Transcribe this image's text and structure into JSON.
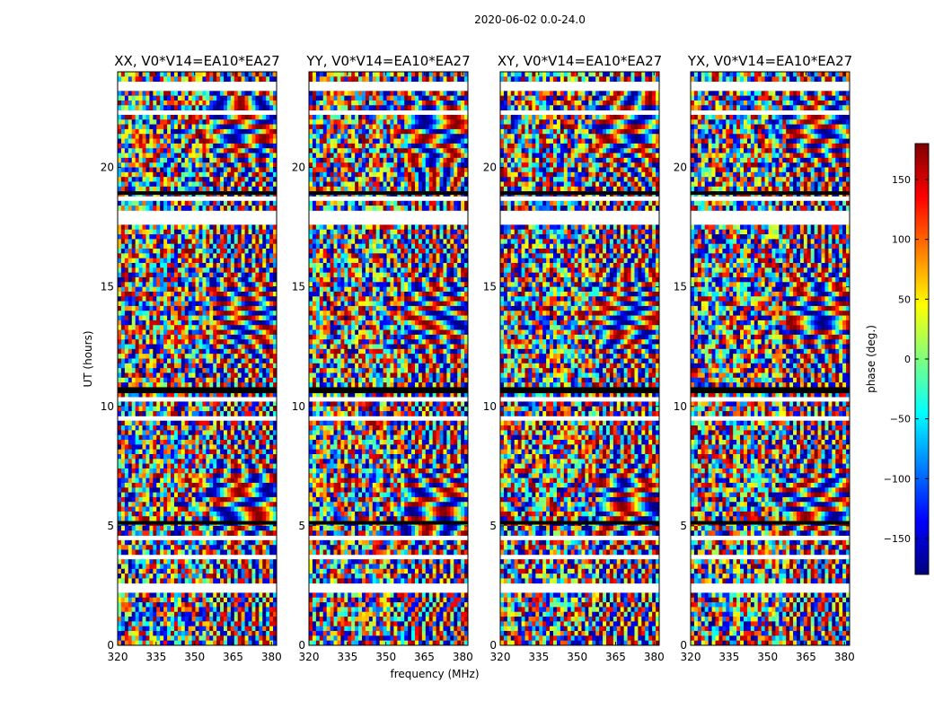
{
  "figure_title": "2020-06-02 0.0-24.0",
  "colorscale": [
    "#00007f",
    "#0000ff",
    "#007fff",
    "#00ffff",
    "#7fff7f",
    "#ffff00",
    "#ff7f00",
    "#ff0000",
    "#7f0000"
  ],
  "chart_data": [
    {
      "type": "heatmap",
      "title": "XX, V0*V14=EA10*EA27",
      "xlabel": "",
      "ylabel": "UT (hours)",
      "xlim": [
        320,
        382
      ],
      "ylim": [
        0,
        24
      ],
      "xticks": [
        320,
        335,
        350,
        365,
        380
      ],
      "yticks": [
        0,
        5,
        10,
        15,
        20
      ]
    },
    {
      "type": "heatmap",
      "title": "YY, V0*V14=EA10*EA27",
      "xlabel": "frequency (MHz)",
      "ylabel": "",
      "xlim": [
        320,
        382
      ],
      "ylim": [
        0,
        24
      ],
      "xticks": [
        320,
        335,
        350,
        365,
        380
      ],
      "yticks": [
        0,
        5,
        10,
        15,
        20
      ]
    },
    {
      "type": "heatmap",
      "title": "XY, V0*V14=EA10*EA27",
      "xlabel": "",
      "ylabel": "",
      "xlim": [
        320,
        382
      ],
      "ylim": [
        0,
        24
      ],
      "xticks": [
        320,
        335,
        350,
        365,
        380
      ],
      "yticks": [
        0,
        5,
        10,
        15,
        20
      ]
    },
    {
      "type": "heatmap",
      "title": "YX, V0*V14=EA10*EA27",
      "xlabel": "",
      "ylabel": "",
      "xlim": [
        320,
        382
      ],
      "ylim": [
        0,
        24
      ],
      "xticks": [
        320,
        335,
        350,
        365,
        380
      ],
      "yticks": [
        0,
        5,
        10,
        15,
        20
      ]
    }
  ],
  "colorbar": {
    "label": "phase (deg.)",
    "range": [
      -180,
      180
    ],
    "ticks": [
      150,
      100,
      50,
      0,
      -50,
      -100,
      -150
    ],
    "tick_labels": [
      "150",
      "100",
      "50",
      "0",
      "−50",
      "−100",
      "−150"
    ]
  }
}
